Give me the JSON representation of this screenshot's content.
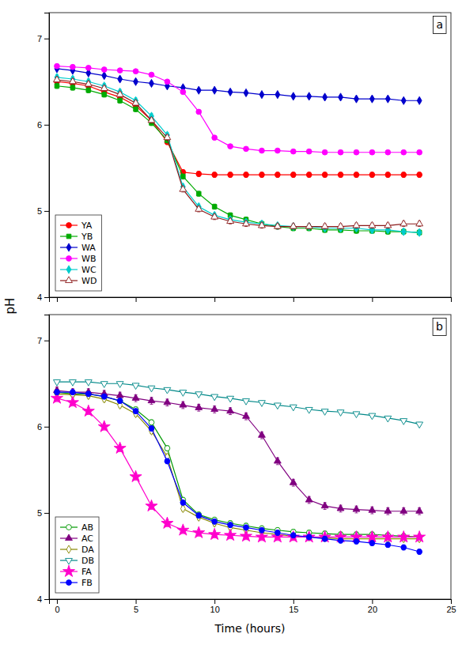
{
  "chart_data": [
    {
      "type": "line",
      "annotation": "a",
      "y_label": "pH",
      "x": [
        0,
        1,
        2,
        3,
        4,
        5,
        6,
        7,
        8,
        9,
        10,
        11,
        12,
        13,
        14,
        15,
        16,
        17,
        18,
        19,
        20,
        21,
        22,
        23
      ],
      "series": [
        {
          "name": "YA",
          "color": "#ff0000",
          "marker": "circle",
          "values": [
            6.5,
            6.48,
            6.45,
            6.38,
            6.32,
            6.22,
            6.05,
            5.8,
            5.45,
            5.43,
            5.42,
            5.42,
            5.42,
            5.42,
            5.42,
            5.42,
            5.42,
            5.42,
            5.42,
            5.42,
            5.42,
            5.42,
            5.42,
            5.42
          ],
          "errors": [
            0.03,
            0.03,
            0.03,
            0.03,
            0.03,
            0.03,
            0.03,
            0.03,
            0.03,
            0.03,
            0.03,
            0.03,
            0.03,
            0.03,
            0.03,
            0.03,
            0.03,
            0.03,
            0.03,
            0.03,
            0.03,
            0.03,
            0.03,
            0.03
          ]
        },
        {
          "name": "YB",
          "color": "#00aa00",
          "marker": "square",
          "values": [
            6.45,
            6.43,
            6.4,
            6.35,
            6.28,
            6.18,
            6.02,
            5.82,
            5.4,
            5.2,
            5.05,
            4.95,
            4.9,
            4.85,
            4.82,
            4.8,
            4.8,
            4.78,
            4.78,
            4.77,
            4.77,
            4.76,
            4.76,
            4.75
          ],
          "errors": [
            0.03,
            0.03,
            0.03,
            0.03,
            0.03,
            0.03,
            0.03,
            0.03,
            0.03,
            0.03,
            0.03,
            0.03,
            0.03,
            0.03,
            0.03,
            0.03,
            0.03,
            0.03,
            0.03,
            0.03,
            0.03,
            0.03,
            0.03,
            0.03
          ]
        },
        {
          "name": "WA",
          "color": "#0000cc",
          "marker": "diamond",
          "values": [
            6.65,
            6.63,
            6.6,
            6.57,
            6.53,
            6.5,
            6.48,
            6.45,
            6.43,
            6.4,
            6.4,
            6.38,
            6.37,
            6.35,
            6.35,
            6.33,
            6.33,
            6.32,
            6.32,
            6.3,
            6.3,
            6.3,
            6.28,
            6.28
          ],
          "errors": [
            0.02,
            0.02,
            0.02,
            0.02,
            0.02,
            0.02,
            0.02,
            0.02,
            0.02,
            0.02,
            0.02,
            0.02,
            0.02,
            0.02,
            0.02,
            0.02,
            0.02,
            0.02,
            0.02,
            0.02,
            0.02,
            0.02,
            0.02,
            0.02
          ]
        },
        {
          "name": "WB",
          "color": "#ff00ff",
          "marker": "circle",
          "values": [
            6.68,
            6.67,
            6.66,
            6.64,
            6.63,
            6.62,
            6.58,
            6.5,
            6.38,
            6.15,
            5.85,
            5.75,
            5.72,
            5.7,
            5.7,
            5.69,
            5.69,
            5.68,
            5.68,
            5.68,
            5.68,
            5.68,
            5.68,
            5.68
          ],
          "errors": [
            0.02,
            0.02,
            0.02,
            0.02,
            0.02,
            0.02,
            0.02,
            0.02,
            0.02,
            0.02,
            0.02,
            0.02,
            0.02,
            0.02,
            0.02,
            0.02,
            0.02,
            0.02,
            0.02,
            0.02,
            0.02,
            0.02,
            0.02,
            0.02
          ]
        },
        {
          "name": "WC",
          "color": "#00cccc",
          "marker": "diamond",
          "values": [
            6.55,
            6.53,
            6.5,
            6.45,
            6.38,
            6.28,
            6.1,
            5.88,
            5.28,
            5.05,
            4.95,
            4.9,
            4.87,
            4.85,
            4.83,
            4.82,
            4.82,
            4.8,
            4.8,
            4.8,
            4.78,
            4.78,
            4.76,
            4.75
          ],
          "errors": [
            0.03,
            0.03,
            0.03,
            0.03,
            0.03,
            0.03,
            0.03,
            0.03,
            0.03,
            0.03,
            0.03,
            0.03,
            0.03,
            0.03,
            0.03,
            0.03,
            0.03,
            0.03,
            0.03,
            0.03,
            0.03,
            0.03,
            0.03,
            0.03
          ]
        },
        {
          "name": "WD",
          "color": "#8b1a1a",
          "marker": "triangle-up-open",
          "values": [
            6.52,
            6.5,
            6.47,
            6.42,
            6.35,
            6.25,
            6.05,
            5.85,
            5.25,
            5.02,
            4.93,
            4.88,
            4.85,
            4.83,
            4.82,
            4.82,
            4.82,
            4.82,
            4.82,
            4.83,
            4.83,
            4.83,
            4.85,
            4.85
          ],
          "errors": [
            0.03,
            0.03,
            0.03,
            0.03,
            0.03,
            0.03,
            0.03,
            0.03,
            0.03,
            0.03,
            0.03,
            0.03,
            0.03,
            0.03,
            0.03,
            0.03,
            0.03,
            0.03,
            0.03,
            0.03,
            0.03,
            0.03,
            0.03,
            0.03
          ]
        }
      ],
      "xlim": [
        -0.5,
        25
      ],
      "xticks": [
        0,
        5,
        10,
        15,
        20,
        25
      ],
      "ylim": [
        4.0,
        7.3
      ],
      "yticks": [
        4,
        5,
        6,
        7
      ],
      "tick_labels": "y",
      "legend": "lower left"
    },
    {
      "type": "line",
      "annotation": "b",
      "x_label": "Time (hours)",
      "x": [
        0,
        1,
        2,
        3,
        4,
        5,
        6,
        7,
        8,
        9,
        10,
        11,
        12,
        13,
        14,
        15,
        16,
        17,
        18,
        19,
        20,
        21,
        22,
        23
      ],
      "series": [
        {
          "name": "AB",
          "color": "#009900",
          "marker": "circle-open",
          "values": [
            6.4,
            6.38,
            6.38,
            6.35,
            6.3,
            6.2,
            6.05,
            5.75,
            5.15,
            4.98,
            4.92,
            4.88,
            4.85,
            4.82,
            4.8,
            4.78,
            4.77,
            4.76,
            4.75,
            4.75,
            4.75,
            4.74,
            4.73,
            4.72
          ],
          "errors": [
            0.03,
            0.03,
            0.03,
            0.03,
            0.03,
            0.03,
            0.03,
            0.03,
            0.03,
            0.03,
            0.03,
            0.03,
            0.03,
            0.03,
            0.03,
            0.03,
            0.03,
            0.03,
            0.03,
            0.03,
            0.03,
            0.03,
            0.03,
            0.03
          ]
        },
        {
          "name": "AC",
          "color": "#800080",
          "marker": "triangle-up",
          "values": [
            6.42,
            6.4,
            6.4,
            6.38,
            6.36,
            6.33,
            6.3,
            6.28,
            6.25,
            6.22,
            6.2,
            6.18,
            6.12,
            5.9,
            5.6,
            5.35,
            5.15,
            5.08,
            5.05,
            5.04,
            5.03,
            5.02,
            5.02,
            5.02
          ],
          "errors": [
            0.04,
            0.04,
            0.04,
            0.04,
            0.04,
            0.04,
            0.04,
            0.04,
            0.04,
            0.04,
            0.04,
            0.04,
            0.04,
            0.04,
            0.04,
            0.04,
            0.04,
            0.04,
            0.04,
            0.04,
            0.04,
            0.04,
            0.04,
            0.04
          ]
        },
        {
          "name": "DA",
          "color": "#888800",
          "marker": "diamond-open",
          "values": [
            6.38,
            6.37,
            6.36,
            6.32,
            6.25,
            6.15,
            5.95,
            5.65,
            5.05,
            4.95,
            4.88,
            4.83,
            4.8,
            4.77,
            4.75,
            4.73,
            4.72,
            4.71,
            4.7,
            4.7,
            4.7,
            4.7,
            4.7,
            4.7
          ],
          "errors": [
            0.03,
            0.03,
            0.03,
            0.03,
            0.03,
            0.03,
            0.03,
            0.03,
            0.03,
            0.03,
            0.03,
            0.03,
            0.03,
            0.03,
            0.03,
            0.03,
            0.03,
            0.03,
            0.03,
            0.03,
            0.03,
            0.03,
            0.03,
            0.03
          ]
        },
        {
          "name": "DB",
          "color": "#008888",
          "marker": "triangle-down-open",
          "values": [
            6.52,
            6.52,
            6.52,
            6.5,
            6.5,
            6.48,
            6.45,
            6.43,
            6.4,
            6.38,
            6.35,
            6.33,
            6.3,
            6.28,
            6.25,
            6.23,
            6.2,
            6.18,
            6.17,
            6.15,
            6.13,
            6.1,
            6.07,
            6.03
          ],
          "errors": [
            0.02,
            0.02,
            0.02,
            0.02,
            0.02,
            0.02,
            0.02,
            0.02,
            0.02,
            0.02,
            0.02,
            0.02,
            0.02,
            0.02,
            0.02,
            0.02,
            0.02,
            0.02,
            0.02,
            0.02,
            0.02,
            0.02,
            0.02,
            0.02
          ]
        },
        {
          "name": "FA",
          "color": "#ff00cc",
          "marker": "star",
          "values": [
            6.33,
            6.28,
            6.18,
            6.0,
            5.75,
            5.42,
            5.08,
            4.88,
            4.8,
            4.77,
            4.75,
            4.74,
            4.73,
            4.72,
            4.72,
            4.72,
            4.72,
            4.72,
            4.72,
            4.72,
            4.72,
            4.72,
            4.72,
            4.72
          ],
          "errors": [
            0.04,
            0.04,
            0.04,
            0.04,
            0.04,
            0.04,
            0.04,
            0.04,
            0.04,
            0.04,
            0.04,
            0.04,
            0.04,
            0.04,
            0.04,
            0.04,
            0.04,
            0.04,
            0.04,
            0.04,
            0.04,
            0.04,
            0.04,
            0.04
          ]
        },
        {
          "name": "FB",
          "color": "#0000ff",
          "marker": "circle",
          "values": [
            6.4,
            6.4,
            6.38,
            6.35,
            6.3,
            6.18,
            5.98,
            5.6,
            5.12,
            4.97,
            4.9,
            4.86,
            4.83,
            4.8,
            4.77,
            4.74,
            4.72,
            4.7,
            4.68,
            4.67,
            4.65,
            4.63,
            4.6,
            4.55
          ],
          "errors": [
            0.03,
            0.03,
            0.03,
            0.03,
            0.03,
            0.03,
            0.03,
            0.03,
            0.03,
            0.03,
            0.03,
            0.03,
            0.03,
            0.03,
            0.03,
            0.03,
            0.03,
            0.03,
            0.03,
            0.03,
            0.03,
            0.03,
            0.03,
            0.03
          ]
        }
      ],
      "xlim": [
        -0.5,
        25
      ],
      "xticks": [
        0,
        5,
        10,
        15,
        20,
        25
      ],
      "ylim": [
        4.0,
        7.3
      ],
      "yticks": [
        4,
        5,
        6,
        7
      ],
      "legend": "lower left"
    }
  ]
}
